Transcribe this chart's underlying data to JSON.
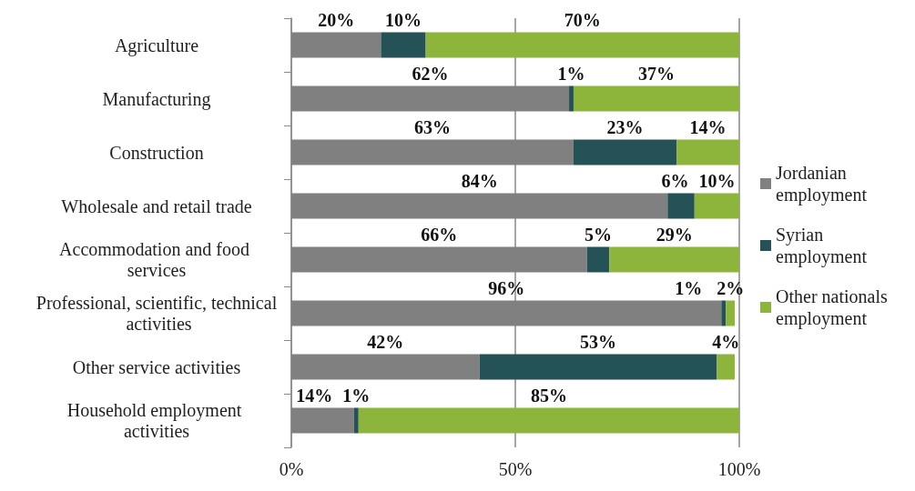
{
  "chart_data": {
    "type": "bar",
    "orientation": "horizontal",
    "stacked": true,
    "categories": [
      "Agriculture",
      "Manufacturing",
      "Construction",
      "Wholesale and retail trade",
      "Accommodation and food services",
      "Professional, scientific, technical activities",
      "Other service activities",
      "Household employment activities"
    ],
    "series": [
      {
        "name": "Jordanian employment",
        "color": "#808080",
        "values": [
          20,
          62,
          63,
          84,
          66,
          96,
          42,
          14
        ],
        "value_labels": [
          "20%",
          "62%",
          "63%",
          "84%",
          "66%",
          "96%",
          "42%",
          "14%"
        ]
      },
      {
        "name": "Syrian employment",
        "color": "#255257",
        "values": [
          10,
          1,
          23,
          6,
          5,
          1,
          53,
          1
        ],
        "value_labels": [
          "10%",
          "1%",
          "23%",
          "6%",
          "5%",
          "1%",
          "53%",
          "1%"
        ]
      },
      {
        "name": "Other nationals employment",
        "color": "#8db53c",
        "values": [
          70,
          37,
          14,
          10,
          29,
          2,
          4,
          85
        ],
        "value_labels": [
          "70%",
          "37%",
          "14%",
          "10%",
          "29%",
          "2%",
          "4%",
          "85%"
        ]
      }
    ],
    "xlim": [
      0,
      100
    ],
    "xticks": [
      {
        "value": 0,
        "label": "0%"
      },
      {
        "value": 50,
        "label": "50%"
      },
      {
        "value": 100,
        "label": "100%"
      }
    ],
    "grid": "x",
    "legend": "right"
  }
}
